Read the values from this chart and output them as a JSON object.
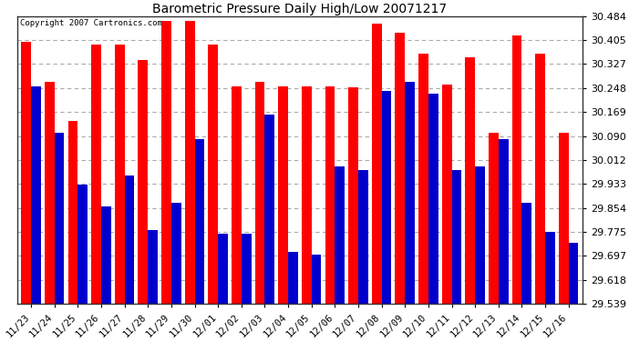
{
  "title": "Barometric Pressure Daily High/Low 20071217",
  "copyright": "Copyright 2007 Cartronics.com",
  "dates": [
    "11/23",
    "11/24",
    "11/25",
    "11/26",
    "11/27",
    "11/28",
    "11/29",
    "11/30",
    "12/01",
    "12/02",
    "12/03",
    "12/04",
    "12/05",
    "12/06",
    "12/07",
    "12/08",
    "12/09",
    "12/10",
    "12/11",
    "12/12",
    "12/13",
    "12/14",
    "12/15",
    "12/16"
  ],
  "highs": [
    30.4,
    30.27,
    30.14,
    30.39,
    30.39,
    30.34,
    30.47,
    30.47,
    30.39,
    30.255,
    30.27,
    30.255,
    30.255,
    30.255,
    30.25,
    30.46,
    30.43,
    30.36,
    30.26,
    30.35,
    30.1,
    30.42,
    30.36,
    30.1
  ],
  "lows": [
    30.255,
    30.1,
    29.93,
    29.86,
    29.96,
    29.78,
    29.87,
    30.08,
    29.77,
    29.77,
    30.16,
    29.71,
    29.7,
    29.99,
    29.98,
    30.24,
    30.27,
    30.23,
    29.98,
    29.99,
    30.08,
    29.87,
    29.775,
    29.74
  ],
  "high_color": "#FF0000",
  "low_color": "#0000CC",
  "bg_color": "#FFFFFF",
  "plot_bg_color": "#FFFFFF",
  "grid_color": "#AAAAAA",
  "yticks": [
    29.539,
    29.618,
    29.697,
    29.775,
    29.854,
    29.933,
    30.012,
    30.09,
    30.169,
    30.248,
    30.327,
    30.405,
    30.484
  ],
  "ymin": 29.539,
  "ymax": 30.484,
  "bar_width": 0.42
}
